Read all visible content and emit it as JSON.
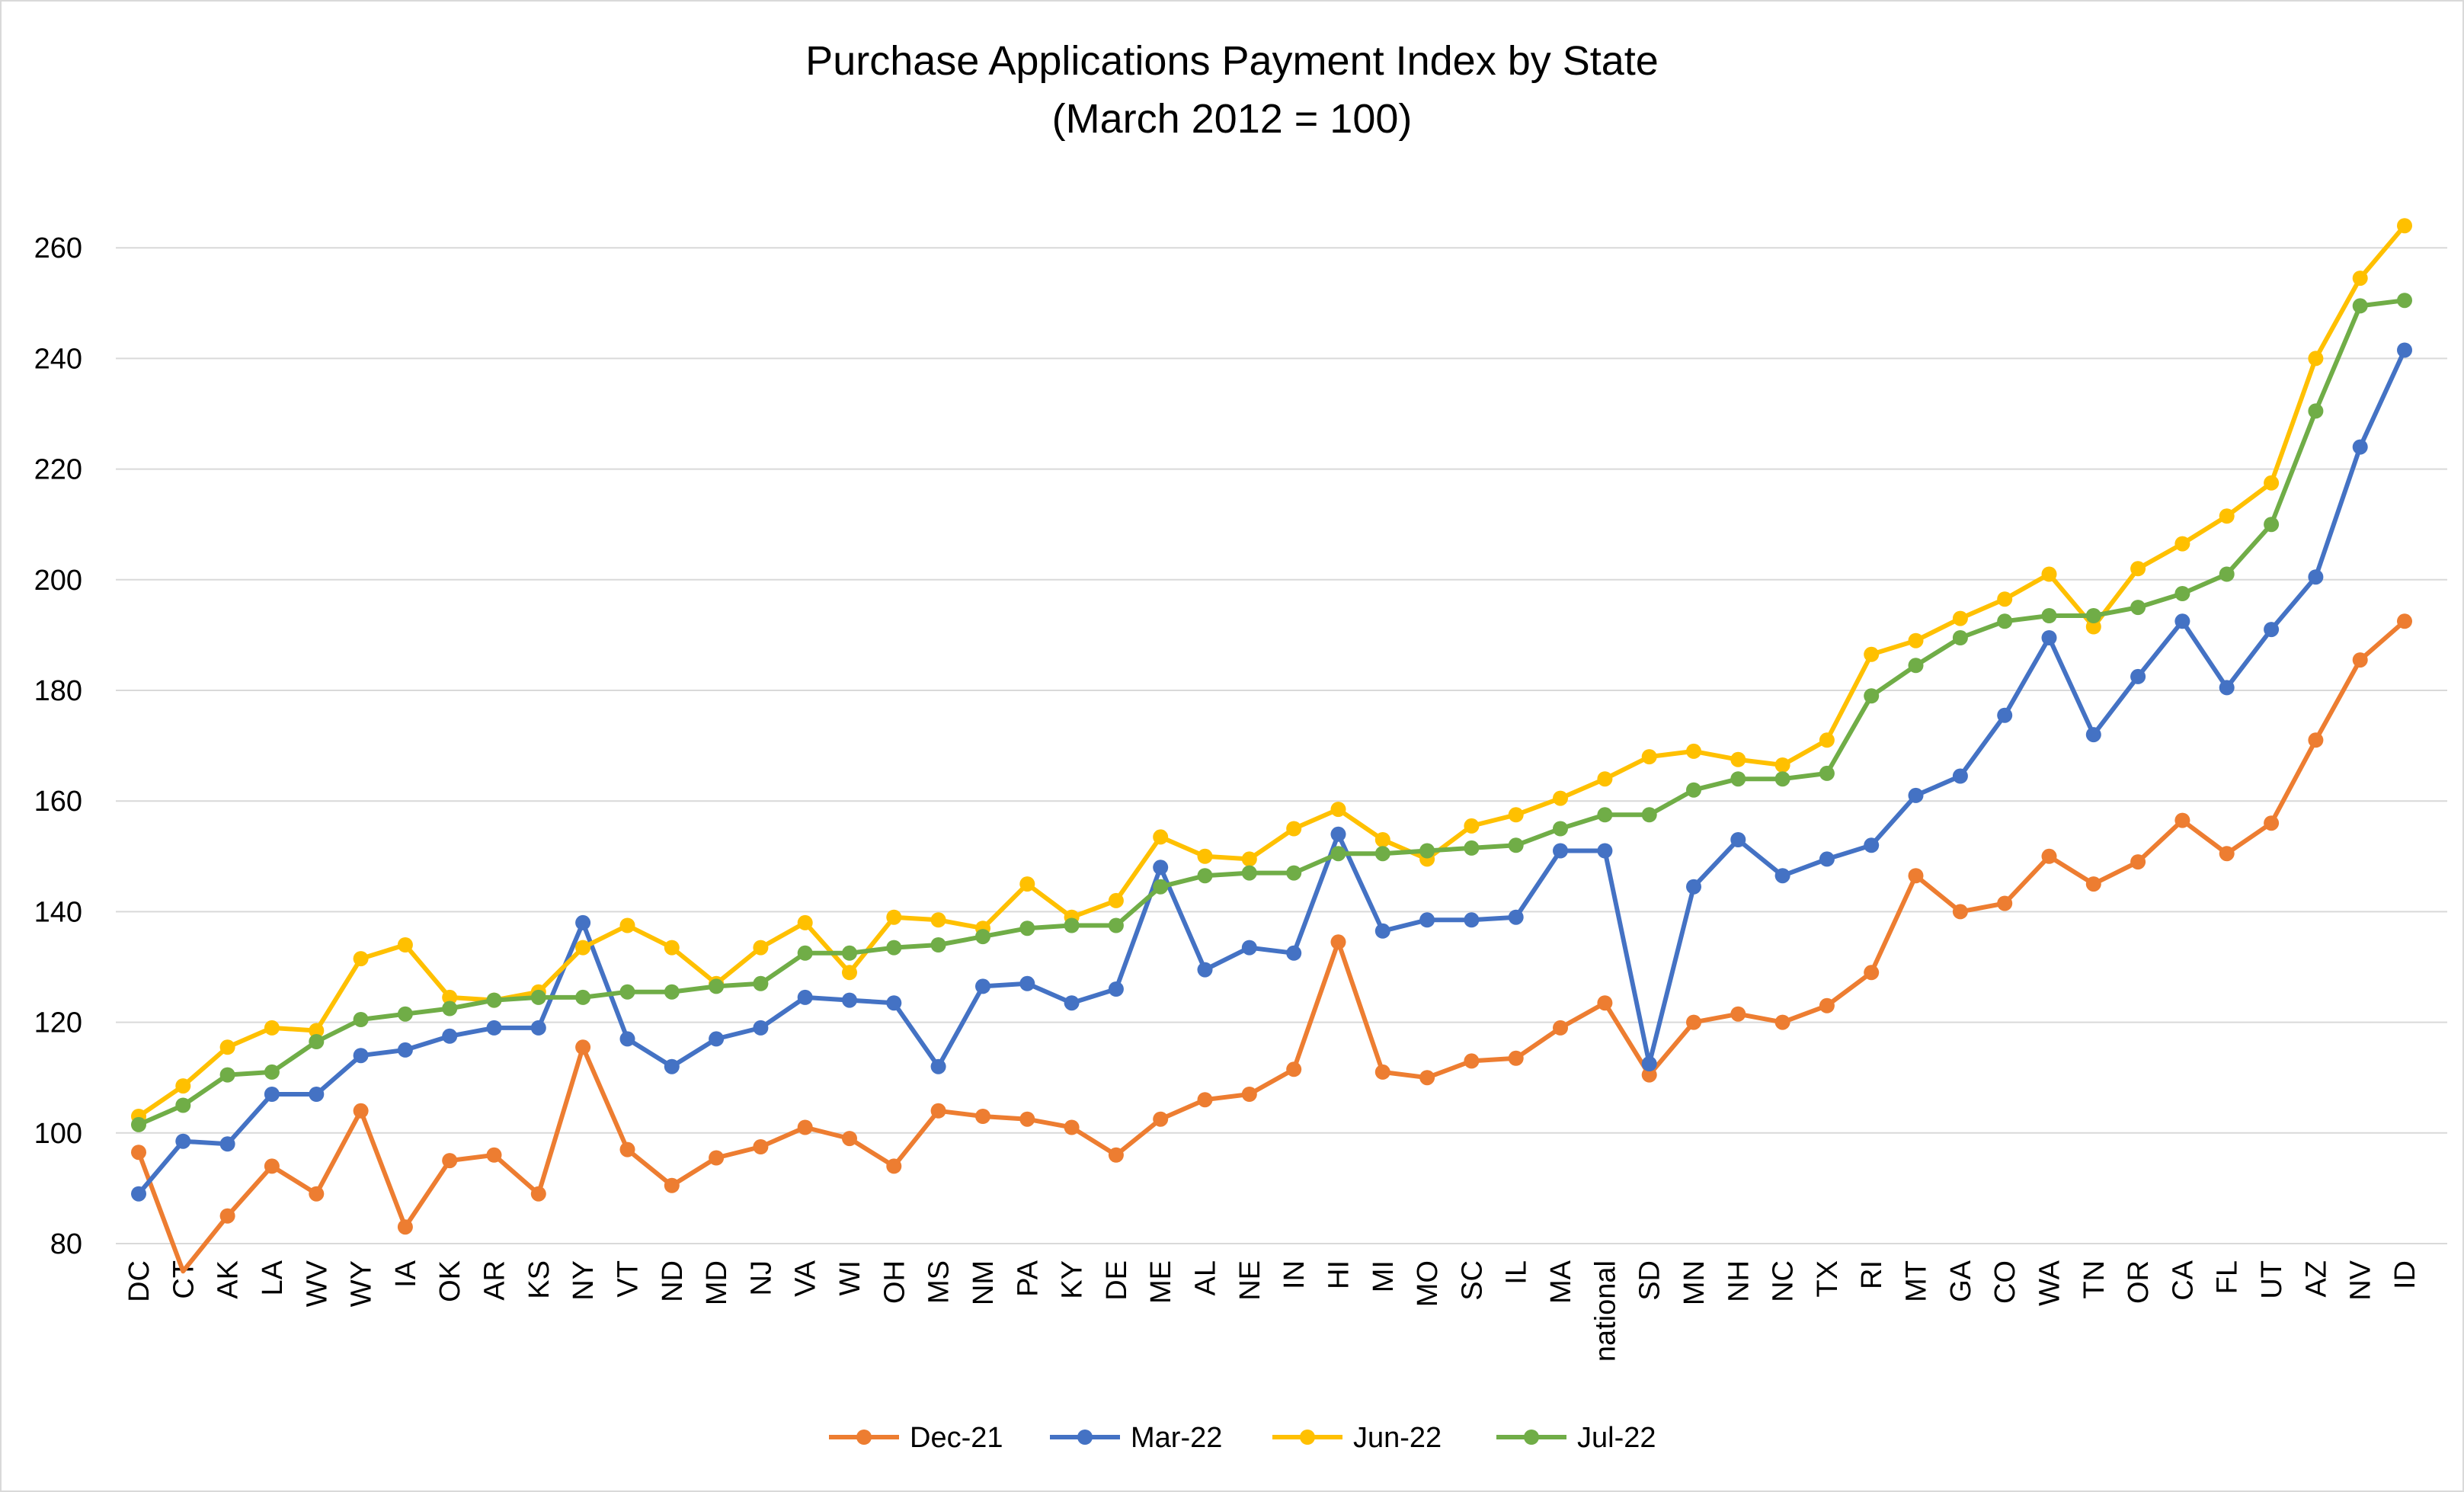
{
  "chart_data": {
    "type": "line",
    "title": "Purchase Applications Payment Index by State",
    "subtitle": "(March 2012 = 100)",
    "categories": [
      "DC",
      "CT",
      "AK",
      "LA",
      "WV",
      "WY",
      "IA",
      "OK",
      "AR",
      "KS",
      "NY",
      "VT",
      "ND",
      "MD",
      "NJ",
      "VA",
      "WI",
      "OH",
      "MS",
      "NM",
      "PA",
      "KY",
      "DE",
      "ME",
      "AL",
      "NE",
      "IN",
      "HI",
      "MI",
      "MO",
      "SC",
      "IL",
      "MA",
      "national",
      "SD",
      "MN",
      "NH",
      "NC",
      "TX",
      "RI",
      "MT",
      "GA",
      "CO",
      "WA",
      "TN",
      "OR",
      "CA",
      "FL",
      "UT",
      "AZ",
      "NV",
      "ID"
    ],
    "ylim": [
      80,
      270
    ],
    "yticks": [
      80,
      100,
      120,
      140,
      160,
      180,
      200,
      220,
      240,
      260
    ],
    "grid": true,
    "legend_position": "bottom",
    "series": [
      {
        "name": "Dec-21",
        "color": "#ED7D31",
        "values": [
          96.5,
          75.0,
          85.0,
          94.0,
          89.0,
          104.0,
          83.0,
          95.0,
          96.0,
          89.0,
          115.5,
          97.0,
          90.5,
          95.5,
          97.5,
          101.0,
          99.0,
          94.0,
          104.0,
          103.0,
          102.5,
          101.0,
          96.0,
          102.5,
          106.0,
          107.0,
          111.5,
          134.5,
          111.0,
          110.0,
          113.0,
          113.5,
          119.0,
          123.5,
          110.5,
          120.0,
          121.5,
          120.0,
          123.0,
          129.0,
          146.5,
          140.0,
          141.5,
          150.0,
          145.0,
          149.0,
          156.5,
          150.5,
          156.0,
          171.0,
          185.5,
          192.5
        ]
      },
      {
        "name": "Mar-22",
        "color": "#4472C4",
        "values": [
          89.0,
          98.5,
          98.0,
          107.0,
          107.0,
          114.0,
          115.0,
          117.5,
          119.0,
          119.0,
          138.0,
          117.0,
          112.0,
          117.0,
          119.0,
          124.5,
          124.0,
          123.5,
          112.0,
          126.5,
          127.0,
          123.5,
          126.0,
          148.0,
          129.5,
          133.5,
          132.5,
          154.0,
          136.5,
          138.5,
          138.5,
          139.0,
          151.0,
          151.0,
          112.5,
          144.5,
          153.0,
          146.5,
          149.5,
          152.0,
          161.0,
          164.5,
          175.5,
          189.5,
          172.0,
          182.5,
          192.5,
          180.5,
          191.0,
          200.5,
          224.0,
          241.5
        ]
      },
      {
        "name": "Jun-22",
        "color": "#FFC000",
        "values": [
          103.0,
          108.5,
          115.5,
          119.0,
          118.5,
          131.5,
          134.0,
          124.5,
          124.0,
          125.5,
          133.5,
          137.5,
          133.5,
          127.0,
          133.5,
          138.0,
          129.0,
          139.0,
          138.5,
          137.0,
          145.0,
          139.0,
          142.0,
          153.5,
          150.0,
          149.5,
          155.0,
          158.5,
          153.0,
          149.5,
          155.5,
          157.5,
          160.5,
          164.0,
          168.0,
          169.0,
          167.5,
          166.5,
          171.0,
          186.5,
          189.0,
          193.0,
          196.5,
          201.0,
          191.5,
          202.0,
          206.5,
          211.5,
          217.5,
          240.0,
          254.5,
          264.0
        ]
      },
      {
        "name": "Jul-22",
        "color": "#70AD47",
        "values": [
          101.5,
          105.0,
          110.5,
          111.0,
          116.5,
          120.5,
          121.5,
          122.5,
          124.0,
          124.5,
          124.5,
          125.5,
          125.5,
          126.5,
          127.0,
          132.5,
          132.5,
          133.5,
          134.0,
          135.5,
          137.0,
          137.5,
          137.5,
          144.5,
          146.5,
          147.0,
          147.0,
          150.5,
          150.5,
          151.0,
          151.5,
          152.0,
          155.0,
          157.5,
          157.5,
          162.0,
          164.0,
          164.0,
          165.0,
          179.0,
          184.5,
          189.5,
          192.5,
          193.5,
          193.5,
          195.0,
          197.5,
          201.0,
          210.0,
          230.5,
          249.5,
          250.5
        ]
      }
    ]
  }
}
